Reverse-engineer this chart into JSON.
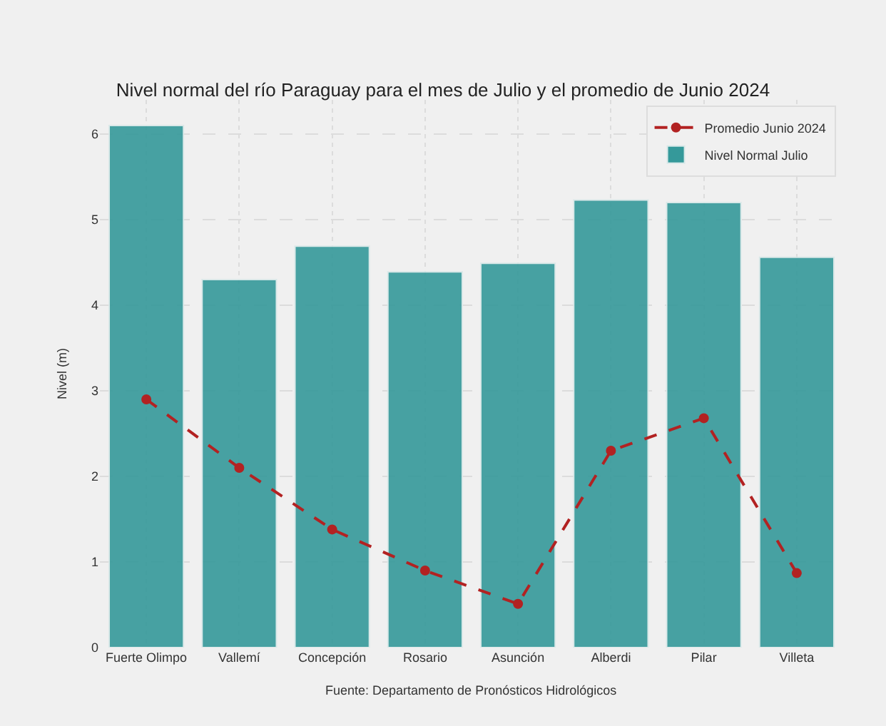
{
  "chart_data": {
    "type": "bar",
    "title": "Nivel normal del río Paraguay para el mes de Julio y el promedio de Junio 2024",
    "ylabel": "Nivel (m)",
    "annotations": [
      "Fuente: Departamento de Pronósticos Hidrológicos"
    ],
    "categories": [
      "Fuerte Olimpo",
      "Vallemí",
      "Concepción",
      "Rosario",
      "Asunción",
      "Alberdi",
      "Pilar",
      "Villeta"
    ],
    "series": [
      {
        "name": "Nivel Normal Julio",
        "color": "#35999a",
        "values": [
          6.1,
          4.3,
          4.69,
          4.39,
          4.49,
          5.23,
          5.2,
          4.56
        ]
      },
      {
        "name": "Promedio Junio 2024",
        "type": "line",
        "color": "#b22222",
        "marker": "circle",
        "line_style": "dashed",
        "values": [
          2.9,
          2.1,
          1.38,
          0.9,
          0.51,
          2.3,
          2.68,
          0.87
        ]
      }
    ],
    "ylim": [
      0,
      6.4
    ],
    "yticks": [
      0,
      1,
      2,
      3,
      4,
      5,
      6
    ],
    "grid": true,
    "legend": "top right"
  }
}
